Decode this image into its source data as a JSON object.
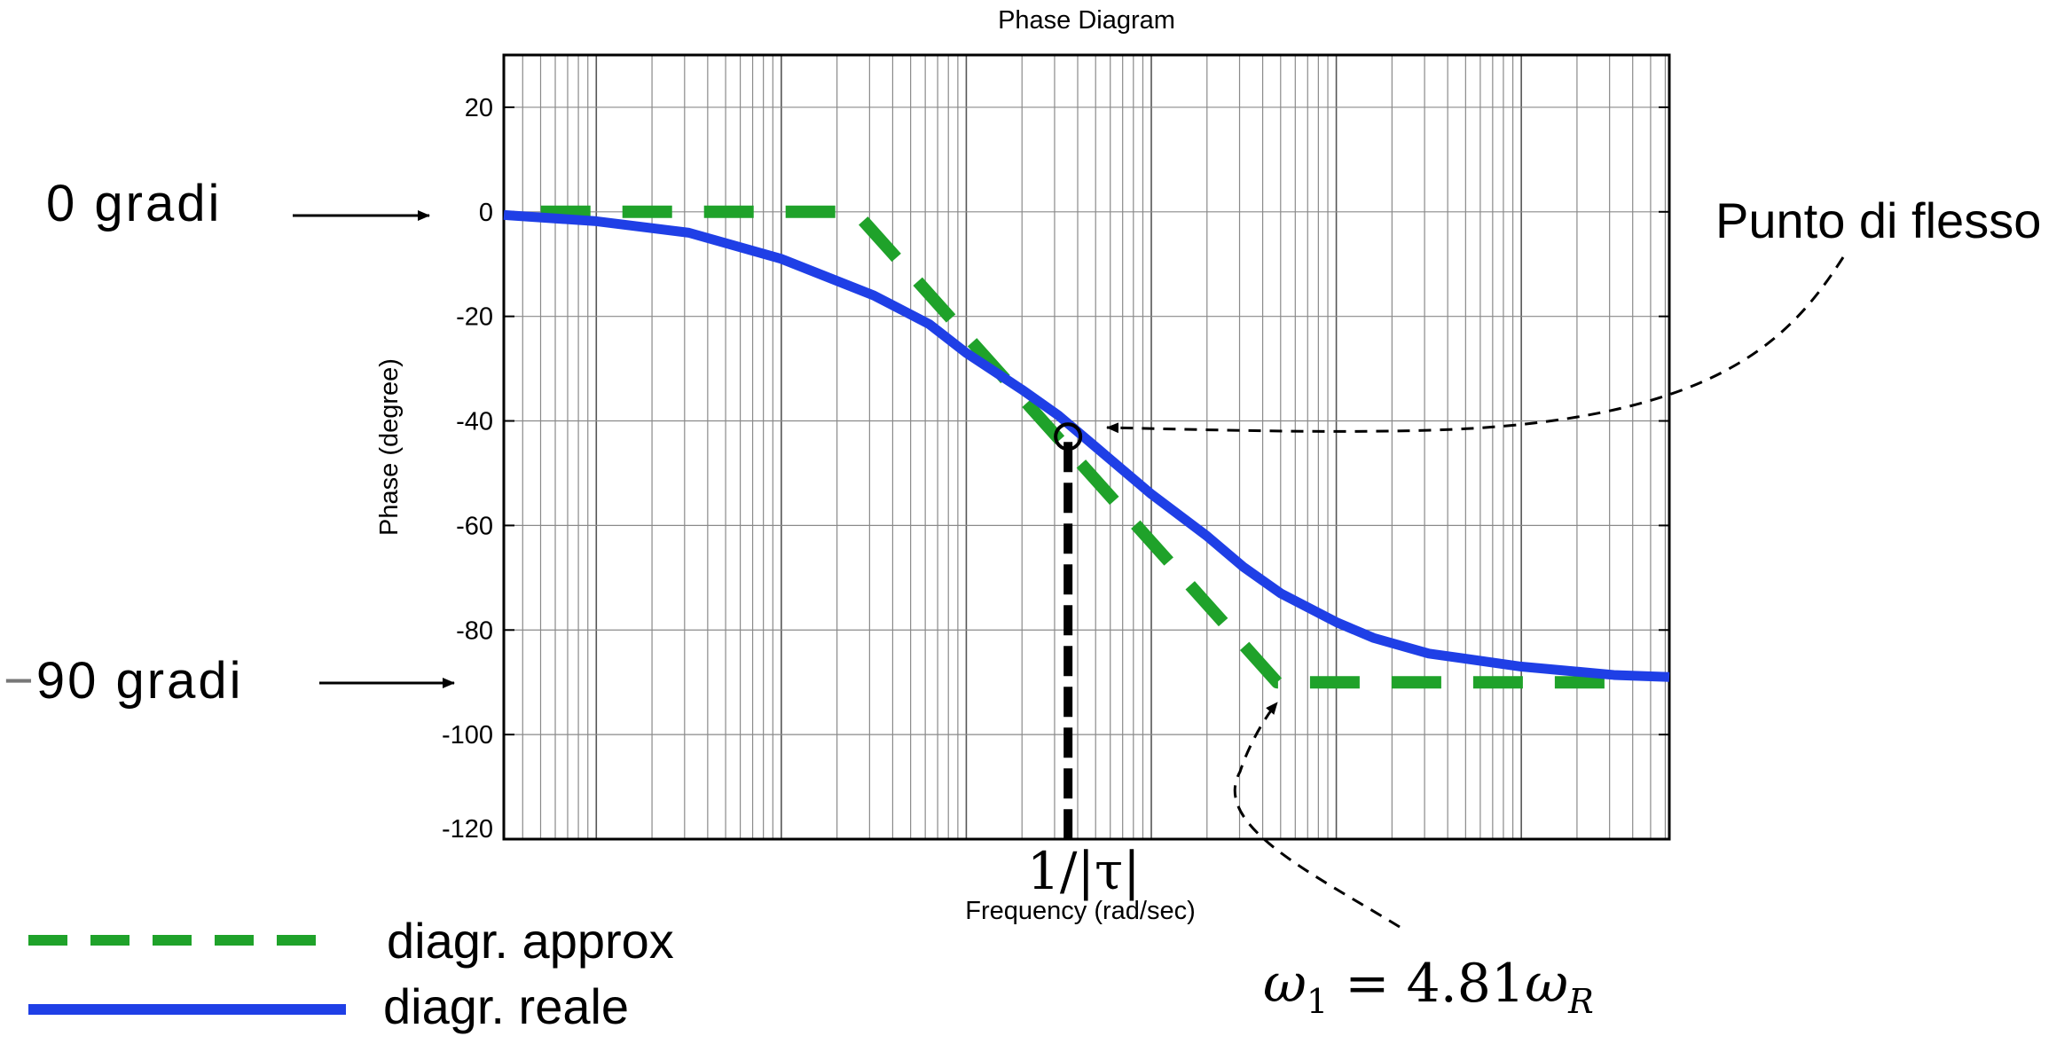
{
  "chart_data": {
    "type": "line",
    "title": "Phase Diagram",
    "xlabel": "Frequency (rad/sec)",
    "ylabel": "Phase (degree)",
    "x_scale": "log",
    "xlim_decades": [
      -3.5,
      2.8
    ],
    "ylim": [
      -120,
      30
    ],
    "yticks": [
      20,
      0,
      -20,
      -40,
      -60,
      -80,
      -100,
      -120
    ],
    "grid": true,
    "series": [
      {
        "name": "diagr. reale",
        "style": "solid",
        "color": "#1f3fe6",
        "x_log": [
          -3.5,
          -3.0,
          -2.5,
          -2.0,
          -1.5,
          -1.2,
          -1.0,
          -0.7,
          -0.5,
          -0.3,
          0.0,
          0.3,
          0.5,
          0.7,
          1.0,
          1.2,
          1.5,
          2.0,
          2.5,
          2.8
        ],
        "y": [
          -0.6,
          -1.8,
          -4.0,
          -9.0,
          -16.0,
          -21.5,
          -27.0,
          -34.0,
          -39.0,
          -45.0,
          -54.0,
          -62.0,
          -68.0,
          -73.0,
          -78.5,
          -81.5,
          -84.5,
          -87.0,
          -88.6,
          -89.0
        ]
      },
      {
        "name": "diagr. approx",
        "style": "dashed",
        "color": "#1fa22a",
        "x_log": [
          -3.3,
          -1.6,
          0.68,
          2.6
        ],
        "y": [
          0,
          0,
          -90,
          -90
        ]
      }
    ],
    "markers": [
      {
        "name": "inflection-point",
        "x_log": -0.45,
        "y": -43
      }
    ]
  },
  "labels": {
    "x_marker": "1/|τ|",
    "zero_deg": "0 gradi",
    "minus90_prefix": "−",
    "minus90_text": "90 gradi",
    "inflection": "Punto di flesso",
    "omega_lhs": "ω",
    "omega_sub": "1",
    "omega_eq": " = 4.81",
    "omega_w": "ω",
    "omega_R": "R"
  },
  "legend": {
    "placement": "bottom-left",
    "items": [
      {
        "label": "diagr. approx",
        "style": "dashed",
        "color": "#1fa22a"
      },
      {
        "label": "diagr. reale",
        "style": "solid",
        "color": "#1f3fe6"
      }
    ]
  }
}
